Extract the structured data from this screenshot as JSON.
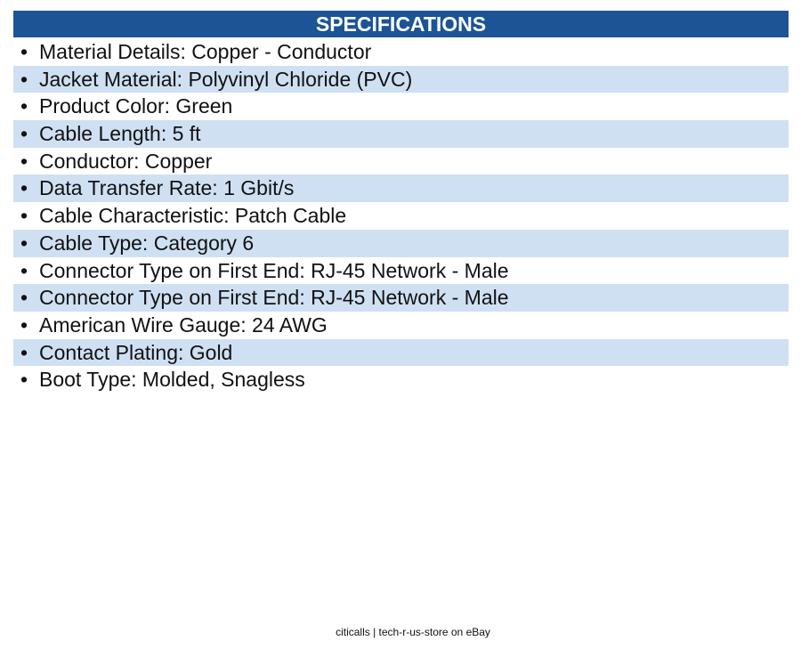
{
  "header": {
    "title": "SPECIFICATIONS"
  },
  "items": [
    "Material Details: Copper - Conductor",
    "Jacket Material: Polyvinyl Chloride (PVC)",
    "Product Color: Green",
    "Cable Length: 5 ft",
    "Conductor: Copper",
    "Data Transfer Rate: 1 Gbit/s",
    "Cable Characteristic: Patch Cable",
    "Cable Type: Category 6",
    "Connector Type on First End: RJ-45 Network - Male",
    "Connector Type on First End: RJ-45 Network - Male",
    "American Wire Gauge: 24 AWG",
    "Contact Plating: Gold",
    "Boot Type: Molded, Snagless"
  ],
  "footer": {
    "text": "citicalls | tech-r-us-store on eBay"
  }
}
